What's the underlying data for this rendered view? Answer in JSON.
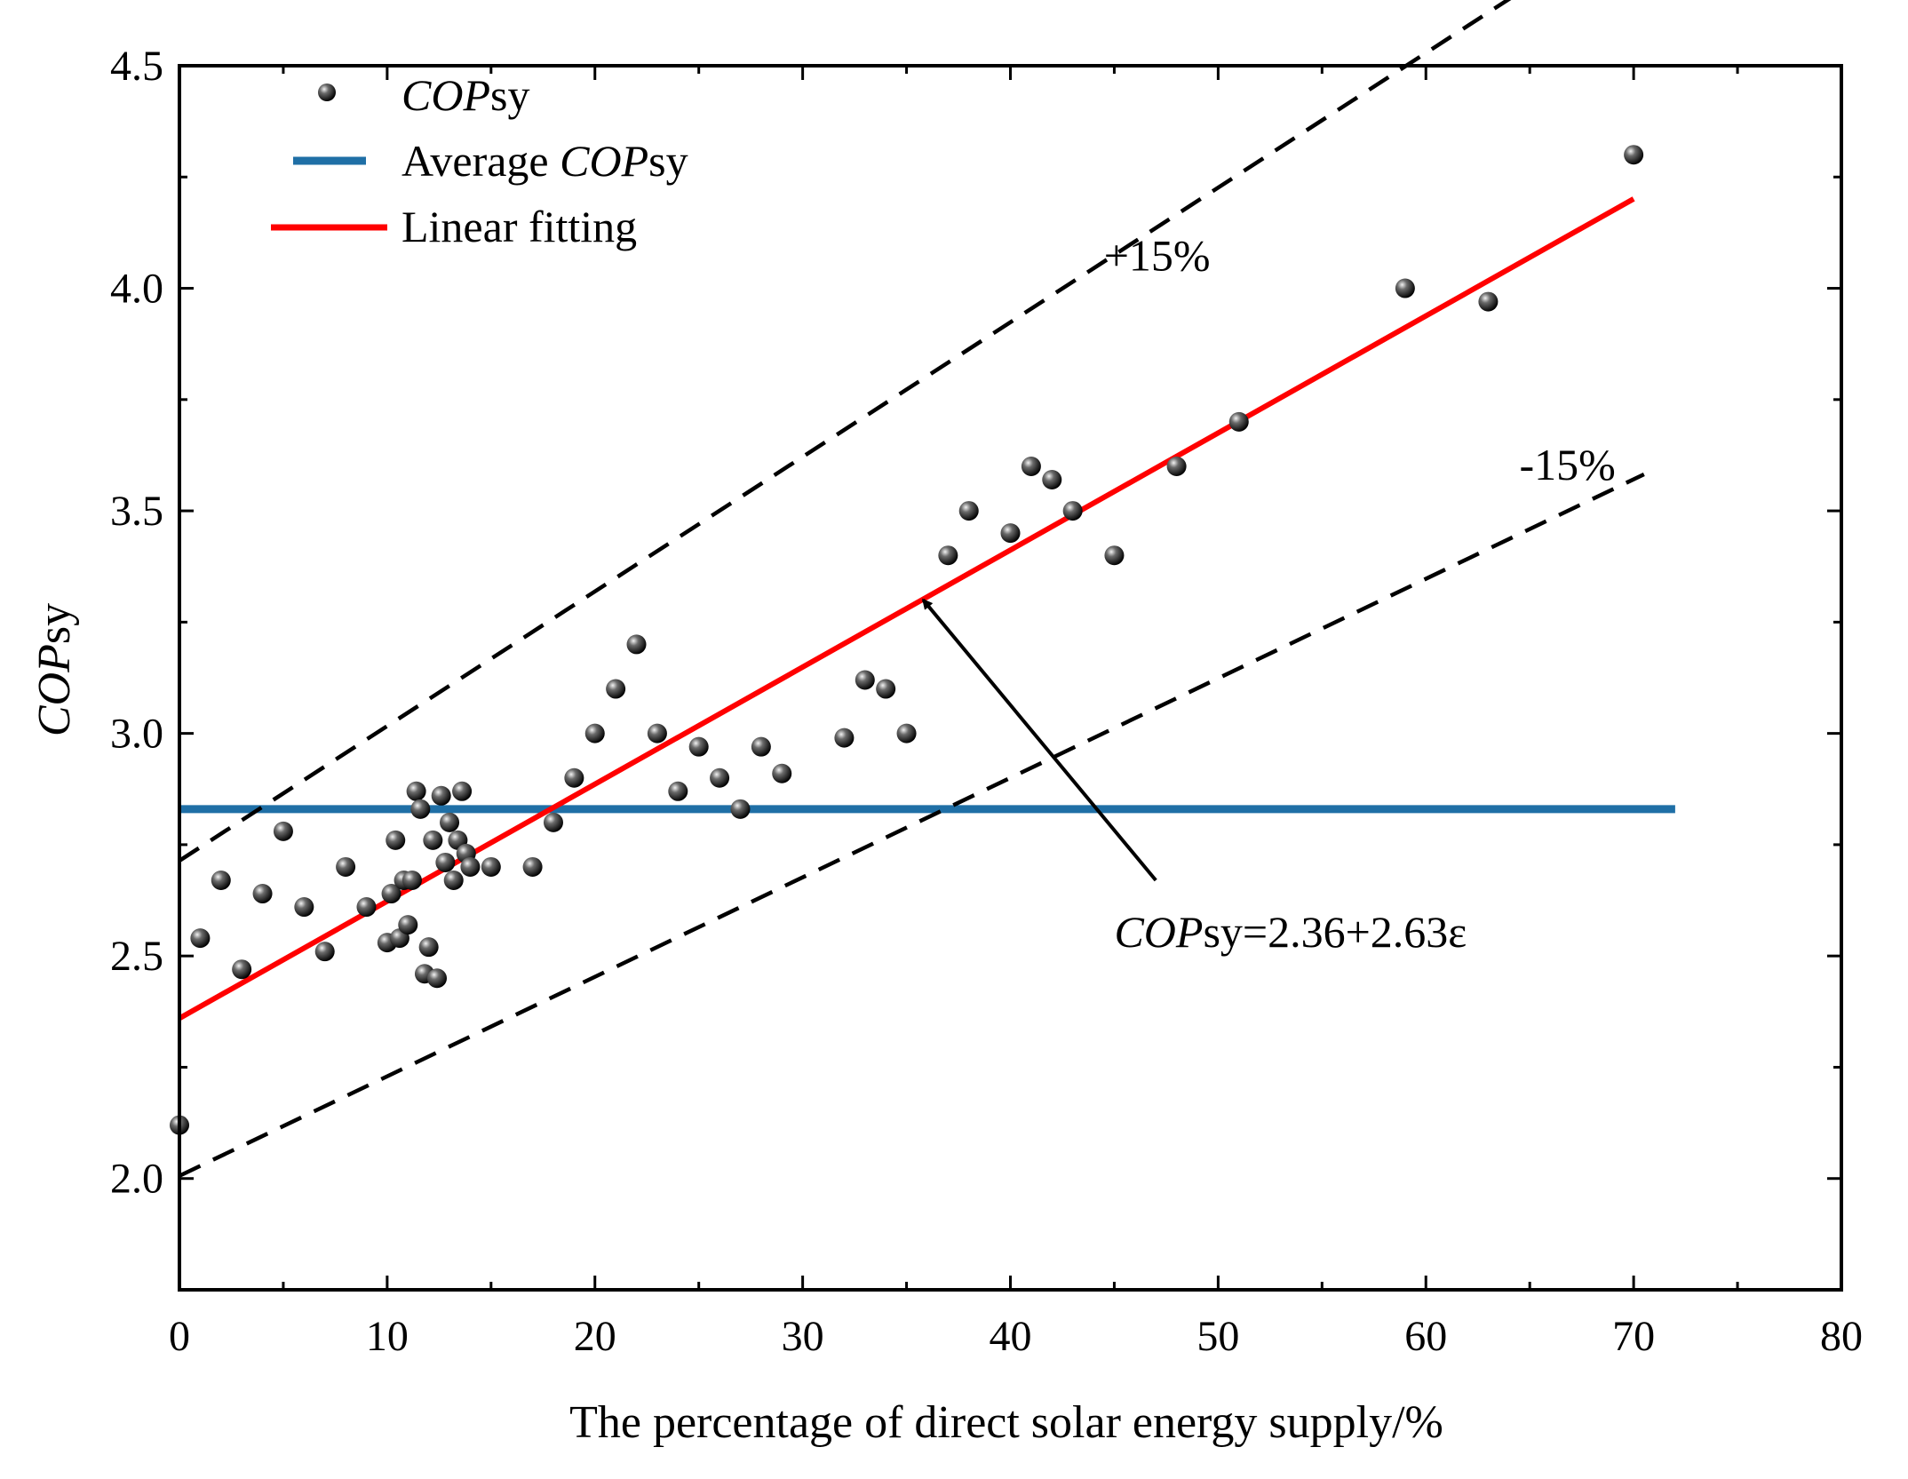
{
  "chart_data": {
    "type": "scatter",
    "xlabel": "The percentage of direct solar energy supply/%",
    "ylabel_italic": "COP",
    "ylabel_sub": "sy",
    "xlim": [
      0,
      80
    ],
    "ylim": [
      1.75,
      4.5
    ],
    "xticks": [
      0,
      10,
      20,
      30,
      40,
      50,
      60,
      70,
      80
    ],
    "yticks": [
      2.0,
      2.5,
      3.0,
      3.5,
      4.0,
      4.5
    ],
    "ytick_labels": [
      "2.0",
      "2.5",
      "3.0",
      "3.5",
      "4.0",
      "4.5"
    ],
    "grid": false,
    "legend_position": "top-left",
    "legend": [
      {
        "kind": "marker",
        "italic": "COP",
        "text": "sy"
      },
      {
        "kind": "line",
        "color": "#1f6fa6",
        "prefix": "Average ",
        "italic": "COP",
        "text": "sy"
      },
      {
        "kind": "line",
        "color": "#ff0000",
        "prefix": "Linear fitting",
        "italic": "",
        "text": ""
      }
    ],
    "series": [
      {
        "name": "COPsy",
        "marker_color": "#111111",
        "points": [
          [
            0,
            2.12
          ],
          [
            1,
            2.54
          ],
          [
            2,
            2.67
          ],
          [
            3,
            2.47
          ],
          [
            4,
            2.64
          ],
          [
            5,
            2.78
          ],
          [
            6,
            2.61
          ],
          [
            7,
            2.51
          ],
          [
            8,
            2.7
          ],
          [
            9,
            2.61
          ],
          [
            10,
            2.53
          ],
          [
            10.2,
            2.64
          ],
          [
            10.4,
            2.76
          ],
          [
            10.6,
            2.54
          ],
          [
            10.8,
            2.67
          ],
          [
            11,
            2.57
          ],
          [
            11.2,
            2.67
          ],
          [
            11.4,
            2.87
          ],
          [
            11.6,
            2.83
          ],
          [
            11.8,
            2.46
          ],
          [
            12,
            2.52
          ],
          [
            12.2,
            2.76
          ],
          [
            12.4,
            2.45
          ],
          [
            12.6,
            2.86
          ],
          [
            12.8,
            2.71
          ],
          [
            13,
            2.8
          ],
          [
            13.2,
            2.67
          ],
          [
            13.4,
            2.76
          ],
          [
            13.6,
            2.87
          ],
          [
            13.8,
            2.73
          ],
          [
            14,
            2.7
          ],
          [
            15,
            2.7
          ],
          [
            17,
            2.7
          ],
          [
            18,
            2.8
          ],
          [
            19,
            2.9
          ],
          [
            20,
            3.0
          ],
          [
            21,
            3.1
          ],
          [
            22,
            3.2
          ],
          [
            23,
            3.0
          ],
          [
            24,
            2.87
          ],
          [
            25,
            2.97
          ],
          [
            26,
            2.9
          ],
          [
            27,
            2.83
          ],
          [
            28,
            2.97
          ],
          [
            29,
            2.91
          ],
          [
            32,
            2.99
          ],
          [
            33,
            3.12
          ],
          [
            34,
            3.1
          ],
          [
            35,
            3.0
          ],
          [
            37,
            3.4
          ],
          [
            38,
            3.5
          ],
          [
            40,
            3.45
          ],
          [
            41,
            3.6
          ],
          [
            42,
            3.57
          ],
          [
            43,
            3.5
          ],
          [
            45,
            3.4
          ],
          [
            48,
            3.6
          ],
          [
            51,
            3.7
          ],
          [
            59,
            4.0
          ],
          [
            63,
            3.97
          ],
          [
            70,
            4.3
          ]
        ]
      },
      {
        "name": "Average COPsy",
        "color": "#1f6fa6",
        "y": 2.83,
        "x_range": [
          0,
          72
        ]
      },
      {
        "name": "Linear fitting",
        "color": "#ff0000",
        "intercept": 2.36,
        "slope": 2.63,
        "x_range": [
          0,
          70
        ]
      },
      {
        "name": "+15%",
        "color": "#000000",
        "dash": true,
        "intercept": 2.714,
        "slope": 3.0245,
        "x_range": [
          0,
          67.5
        ]
      },
      {
        "name": "-15%",
        "color": "#000000",
        "dash": true,
        "intercept": 2.006,
        "slope": 2.2355,
        "x_range": [
          0,
          70.5
        ]
      }
    ],
    "annotations": [
      {
        "text": "+15%",
        "x": 44.5,
        "y": 4.04
      },
      {
        "text": "-15%",
        "x": 64.5,
        "y": 3.57
      },
      {
        "italic": "COP",
        "text": "sy=2.36+2.63ε",
        "x": 45,
        "y": 2.52,
        "arrow_to": [
          35.8,
          3.3
        ]
      }
    ]
  }
}
